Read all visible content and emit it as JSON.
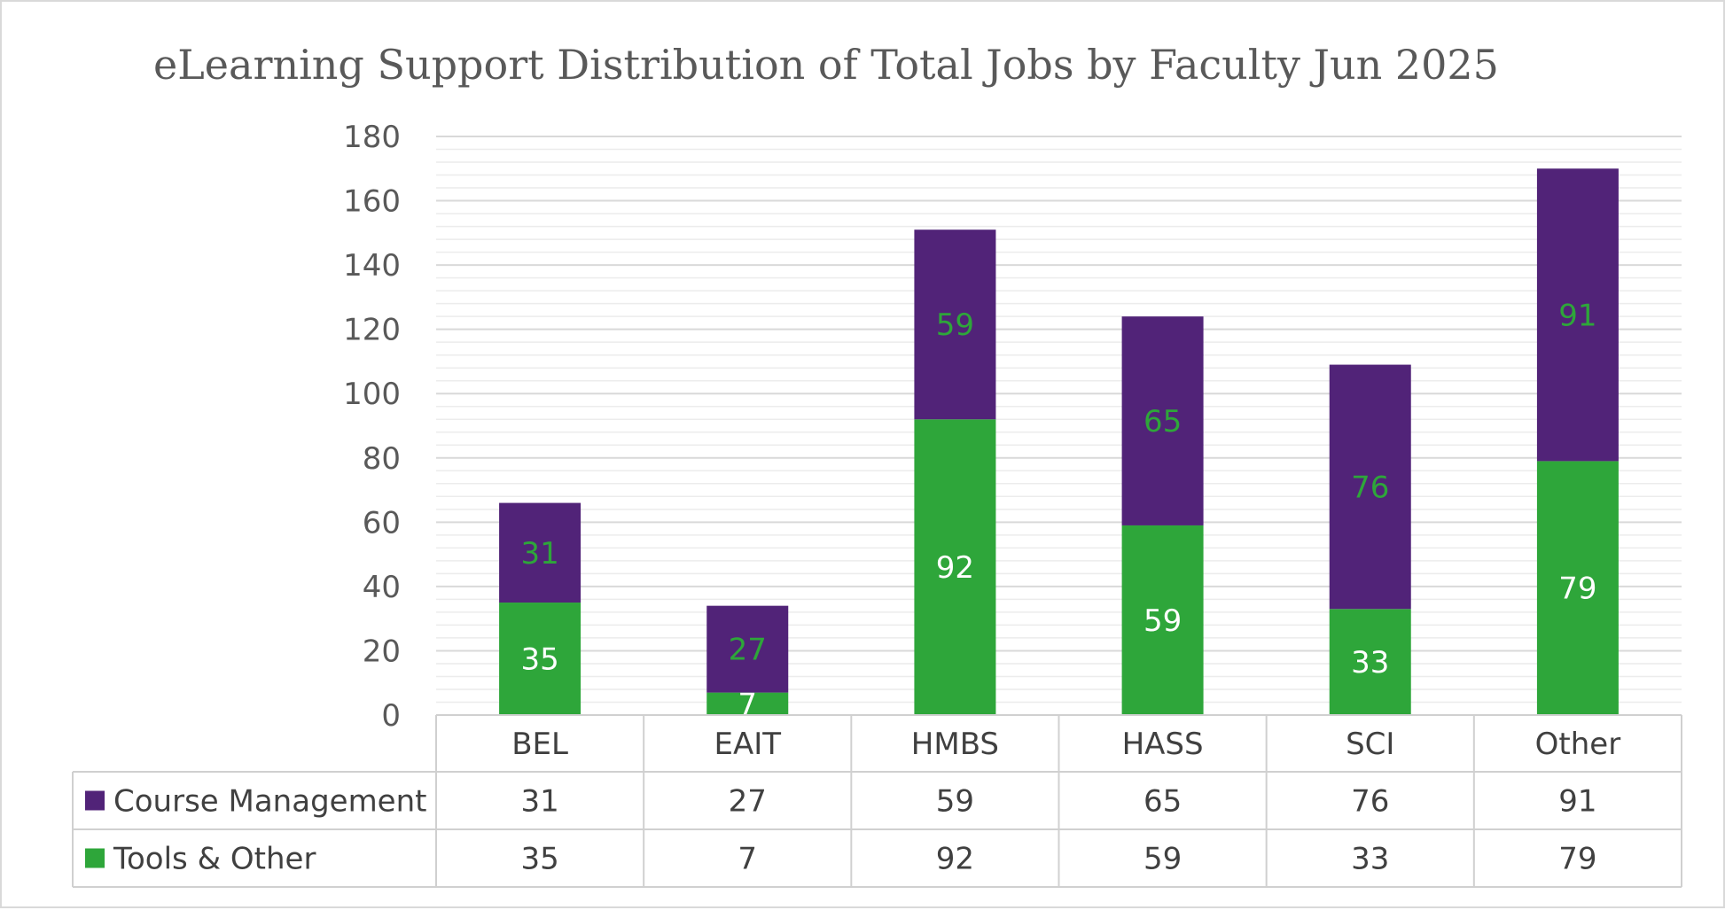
{
  "chart_data": {
    "type": "bar",
    "stacked": true,
    "title": "eLearning Support Distribution of Total Jobs by Faculty Jun 2025",
    "categories": [
      "BEL",
      "EAIT",
      "HMBS",
      "HASS",
      "SCI",
      "Other"
    ],
    "series": [
      {
        "name": "Tools & Other",
        "values": [
          35,
          7,
          92,
          59,
          33,
          79
        ],
        "color": "#2ea63a",
        "label_color": "#ffffff"
      },
      {
        "name": "Course Management",
        "values": [
          31,
          27,
          59,
          65,
          76,
          91
        ],
        "color": "#512378",
        "label_color": "#2ea63a"
      }
    ],
    "table_rows": [
      {
        "name": "Course Management",
        "color": "#512378",
        "values": [
          "31",
          "27",
          "59",
          "65",
          "76",
          "91"
        ]
      },
      {
        "name": "Tools & Other",
        "color": "#2ea63a",
        "values": [
          "35",
          "7",
          "92",
          "59",
          "33",
          "79"
        ]
      }
    ],
    "y_ticks": [
      "0",
      "20",
      "40",
      "60",
      "80",
      "100",
      "120",
      "140",
      "160",
      "180"
    ],
    "ylim": [
      0,
      180
    ],
    "xlabel": "",
    "ylabel": "",
    "grid": true,
    "legend": "data-table"
  }
}
